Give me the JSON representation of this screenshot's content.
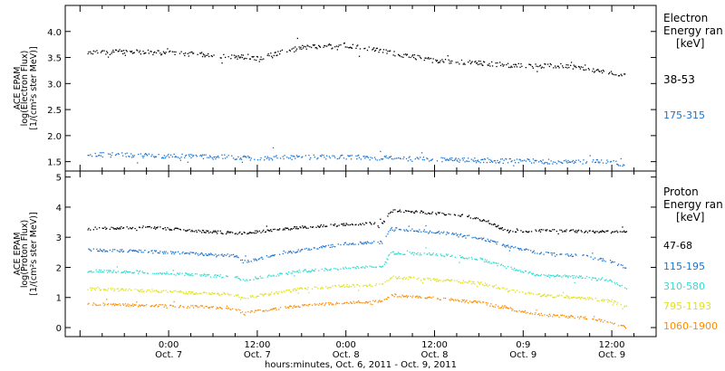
{
  "chart_data": [
    {
      "type": "scatter",
      "panel": "electron",
      "ylabel_lines": [
        "ACE EPAM",
        "log(Electron Flux)",
        "[1/(cm²s ster MeV)]"
      ],
      "yticks": [
        "1.5",
        "2.0",
        "2.5",
        "3.0",
        "3.5",
        "4.0"
      ],
      "ylim": [
        1.32,
        4.5
      ],
      "legend_title_lines": [
        "Electron",
        "Energy ran",
        "[keV]"
      ],
      "series": [
        {
          "name": "38-53",
          "color": "#000000",
          "x": [
            -11,
            -6,
            0,
            6,
            12,
            18,
            24,
            30,
            36,
            42,
            48,
            54,
            60,
            62
          ],
          "y": [
            3.6,
            3.62,
            3.6,
            3.55,
            3.5,
            3.7,
            3.75,
            3.6,
            3.45,
            3.4,
            3.35,
            3.35,
            3.2,
            3.15
          ]
        },
        {
          "name": "175-315",
          "color": "#1a73d0",
          "x": [
            -11,
            0,
            12,
            24,
            36,
            48,
            60,
            62
          ],
          "y": [
            1.65,
            1.62,
            1.58,
            1.6,
            1.55,
            1.52,
            1.5,
            1.45
          ]
        }
      ]
    },
    {
      "type": "scatter",
      "panel": "proton",
      "ylabel_lines": [
        "ACE EPAM",
        "log(Proton Flux)",
        "[1/(cm²s ster MeV)]"
      ],
      "yticks": [
        "0",
        "1",
        "2",
        "3",
        "4",
        "5"
      ],
      "ylim": [
        -0.3,
        5.2
      ],
      "legend_title_lines": [
        "Proton",
        "Energy ran",
        "[keV]"
      ],
      "series": [
        {
          "name": "47-68",
          "color": "#000000",
          "x": [
            -11,
            -3,
            5,
            10,
            18,
            24,
            29,
            30,
            34,
            40,
            43,
            46,
            52,
            58,
            62
          ],
          "y": [
            3.3,
            3.35,
            3.2,
            3.15,
            3.35,
            3.45,
            3.5,
            3.9,
            3.85,
            3.75,
            3.55,
            3.2,
            3.25,
            3.2,
            3.2
          ]
        },
        {
          "name": "115-195",
          "color": "#1a73d0",
          "x": [
            -11,
            -3,
            5,
            9,
            10,
            18,
            24,
            29,
            30,
            36,
            42,
            46,
            50,
            56,
            60,
            62
          ],
          "y": [
            2.6,
            2.55,
            2.45,
            2.4,
            2.2,
            2.6,
            2.8,
            2.85,
            3.3,
            3.2,
            3.0,
            2.7,
            2.5,
            2.4,
            2.2,
            2.0
          ]
        },
        {
          "name": "310-580",
          "color": "#33ddd0",
          "x": [
            -11,
            -3,
            5,
            9,
            10,
            18,
            24,
            29,
            30,
            36,
            42,
            46,
            50,
            56,
            60,
            62
          ],
          "y": [
            1.9,
            1.85,
            1.75,
            1.7,
            1.6,
            1.9,
            2.0,
            2.05,
            2.5,
            2.45,
            2.3,
            2.0,
            1.75,
            1.7,
            1.55,
            1.3
          ]
        },
        {
          "name": "795-1193",
          "color": "#e0e020",
          "x": [
            -11,
            -3,
            5,
            9,
            10,
            18,
            24,
            29,
            30,
            36,
            42,
            46,
            50,
            56,
            60,
            62
          ],
          "y": [
            1.3,
            1.25,
            1.15,
            1.1,
            1.0,
            1.3,
            1.4,
            1.45,
            1.7,
            1.6,
            1.5,
            1.25,
            1.1,
            1.0,
            0.9,
            0.7
          ]
        },
        {
          "name": "1060-1900",
          "color": "#ff8c00",
          "x": [
            -11,
            -3,
            5,
            9,
            10,
            18,
            24,
            29,
            30,
            36,
            42,
            46,
            50,
            56,
            60,
            62
          ],
          "y": [
            0.8,
            0.75,
            0.7,
            0.65,
            0.5,
            0.75,
            0.85,
            0.9,
            1.1,
            1.0,
            0.85,
            0.65,
            0.45,
            0.35,
            0.2,
            0.0
          ]
        }
      ],
      "xtick_labels": [
        {
          "time": "0:00",
          "date": "Oct. 7"
        },
        {
          "time": "12:00",
          "date": "Oct. 7"
        },
        {
          "time": "0:00",
          "date": "Oct. 8"
        },
        {
          "time": "12:00",
          "date": "Oct. 8"
        },
        {
          "time": "0:9",
          "date": "Oct. 9"
        },
        {
          "time": "12:00",
          "date": "Oct. 9"
        }
      ],
      "xlabel": "hours:minutes, Oct.  6, 2011 - Oct.  9, 2011"
    }
  ]
}
